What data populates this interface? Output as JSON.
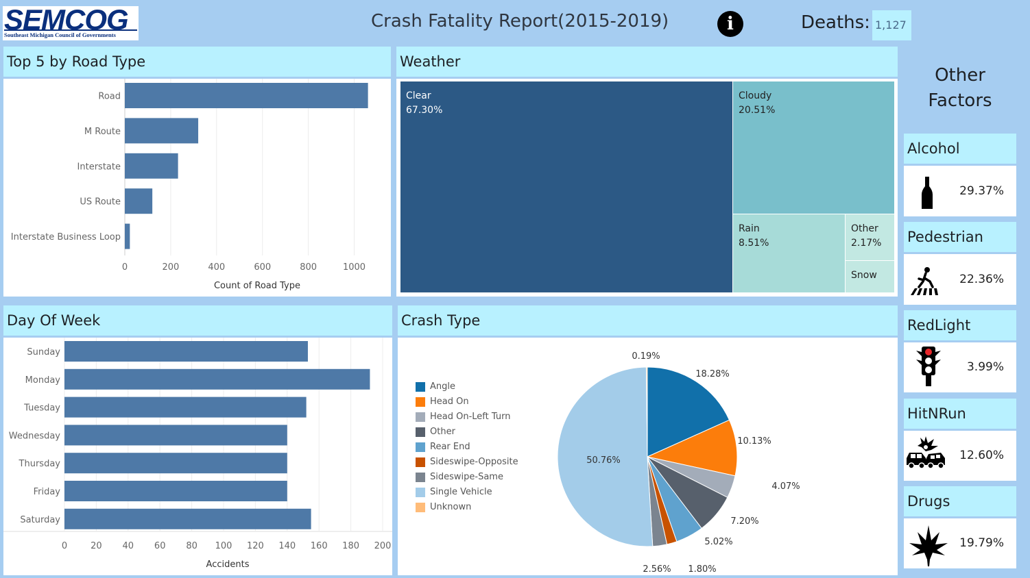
{
  "header": {
    "logo_text": "SEMCOG",
    "logo_subtitle": "Southeast Michigan Council of Governments",
    "title": "Crash Fatality Report(2015-2019)",
    "deaths_label": "Deaths:",
    "deaths_value": "1,127"
  },
  "panels": {
    "road_type": "Top 5 by  Road Type",
    "weather": "Weather",
    "day_of_week": "Day Of Week",
    "crash_type": "Crash Type"
  },
  "other_factors": {
    "title_line1": "Other",
    "title_line2": "Factors",
    "items": [
      {
        "name": "Alcohol",
        "value": "29.37%",
        "icon": "bottle-icon"
      },
      {
        "name": "Pedestrian",
        "value": "22.36%",
        "icon": "pedestrian-icon"
      },
      {
        "name": "RedLight",
        "value": "3.99%",
        "icon": "traffic-light-icon"
      },
      {
        "name": "HitNRun",
        "value": "12.60%",
        "icon": "car-crash-icon"
      },
      {
        "name": "Drugs",
        "value": "19.79%",
        "icon": "cannabis-leaf-icon"
      }
    ]
  },
  "colors": {
    "bar": "#4e79a7",
    "header_bg": "#b8f1ff",
    "page_bg": "#a6cdf1"
  },
  "chart_data": [
    {
      "type": "bar",
      "orientation": "horizontal",
      "categories": [
        "Road",
        "M Route",
        "Interstate",
        "US Route",
        "Interstate Business Loop"
      ],
      "values": [
        1060,
        320,
        232,
        120,
        22
      ],
      "xlabel": "Count of Road Type",
      "xticks": [
        "0",
        "200",
        "400",
        "600",
        "800",
        "1000"
      ],
      "xlim": [
        0,
        1100
      ],
      "grid": true
    },
    {
      "type": "treemap",
      "items": [
        {
          "label": "Clear",
          "value": "67.30%"
        },
        {
          "label": "Cloudy",
          "value": "20.51%"
        },
        {
          "label": "Rain",
          "value": "8.51%"
        },
        {
          "label": "Other",
          "value": "2.17%"
        },
        {
          "label": "Snow",
          "value": ""
        }
      ]
    },
    {
      "type": "bar",
      "orientation": "horizontal",
      "categories": [
        "Sunday",
        "Monday",
        "Tuesday",
        "Wednesday",
        "Thursday",
        "Friday",
        "Saturday"
      ],
      "values": [
        153,
        192,
        152,
        140,
        140,
        140,
        155
      ],
      "xlabel": "Accidents",
      "xticks": [
        "0",
        "20",
        "40",
        "60",
        "80",
        "100",
        "120",
        "140",
        "160",
        "180",
        "200"
      ],
      "xlim": [
        0,
        200
      ],
      "grid": true
    },
    {
      "type": "pie",
      "legend": [
        {
          "name": "Angle",
          "color": "#1170aa"
        },
        {
          "name": "Head On",
          "color": "#fc7d0b"
        },
        {
          "name": "Head On-Left Turn",
          "color": "#a3acb9"
        },
        {
          "name": "Other",
          "color": "#57606c"
        },
        {
          "name": "Rear End",
          "color": "#5fa2ce"
        },
        {
          "name": "Sideswipe-Opposite",
          "color": "#c85200"
        },
        {
          "name": "Sideswipe-Same",
          "color": "#7b848f"
        },
        {
          "name": "Single Vehicle",
          "color": "#a3cce9"
        },
        {
          "name": "Unknown",
          "color": "#ffbc79"
        }
      ],
      "slices": [
        {
          "name": "Angle",
          "value": 18.28,
          "label": "18.28%"
        },
        {
          "name": "Head On",
          "value": 10.13,
          "label": "10.13%"
        },
        {
          "name": "Head On-Left Turn",
          "value": 4.07,
          "label": "4.07%"
        },
        {
          "name": "Other",
          "value": 7.2,
          "label": "7.20%"
        },
        {
          "name": "Rear End",
          "value": 5.02,
          "label": "5.02%"
        },
        {
          "name": "Sideswipe-Opposite",
          "value": 1.8,
          "label": "1.80%"
        },
        {
          "name": "Sideswipe-Same",
          "value": 2.56,
          "label": "2.56%"
        },
        {
          "name": "Single Vehicle",
          "value": 50.76,
          "label": "50.76%"
        },
        {
          "name": "Unknown",
          "value": 0.19,
          "label": "0.19%"
        }
      ],
      "legend_position": "left"
    }
  ]
}
